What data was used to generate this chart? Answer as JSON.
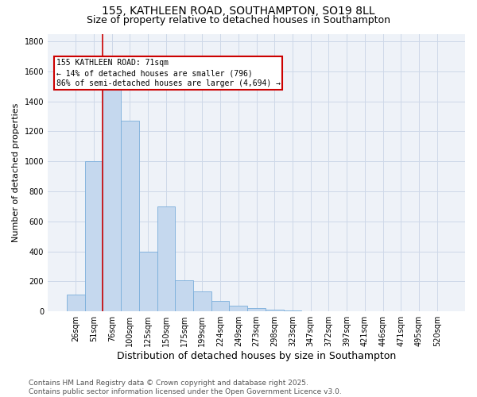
{
  "title1": "155, KATHLEEN ROAD, SOUTHAMPTON, SO19 8LL",
  "title2": "Size of property relative to detached houses in Southampton",
  "xlabel": "Distribution of detached houses by size in Southampton",
  "ylabel": "Number of detached properties",
  "categories": [
    "26sqm",
    "51sqm",
    "76sqm",
    "100sqm",
    "125sqm",
    "150sqm",
    "175sqm",
    "199sqm",
    "224sqm",
    "249sqm",
    "273sqm",
    "298sqm",
    "323sqm",
    "347sqm",
    "372sqm",
    "397sqm",
    "421sqm",
    "446sqm",
    "471sqm",
    "495sqm",
    "520sqm"
  ],
  "values": [
    110,
    1000,
    1500,
    1270,
    400,
    700,
    210,
    135,
    70,
    40,
    20,
    10,
    5,
    3,
    3,
    0,
    0,
    0,
    0,
    0,
    0
  ],
  "bar_color": "#c5d8ee",
  "bar_edge_color": "#7aaedb",
  "vline_color": "#cc0000",
  "annotation_text": "155 KATHLEEN ROAD: 71sqm\n← 14% of detached houses are smaller (796)\n86% of semi-detached houses are larger (4,694) →",
  "annotation_box_color": "#ffffff",
  "annotation_edge_color": "#cc0000",
  "ylim": [
    0,
    1850
  ],
  "yticks": [
    0,
    200,
    400,
    600,
    800,
    1000,
    1200,
    1400,
    1600,
    1800
  ],
  "grid_color": "#cdd8e8",
  "bg_color": "#eef2f8",
  "footnote": "Contains HM Land Registry data © Crown copyright and database right 2025.\nContains public sector information licensed under the Open Government Licence v3.0.",
  "title1_fontsize": 10,
  "title2_fontsize": 9,
  "xlabel_fontsize": 9,
  "ylabel_fontsize": 8,
  "tick_fontsize": 7,
  "annot_fontsize": 7,
  "footnote_fontsize": 6.5
}
